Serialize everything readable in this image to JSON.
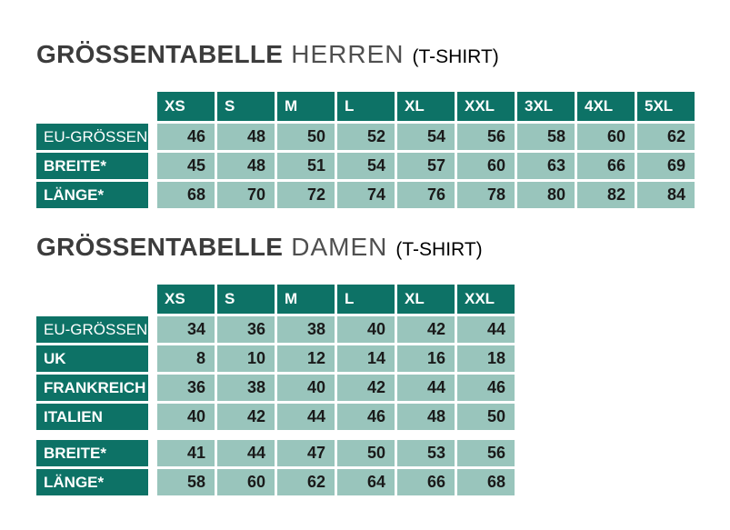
{
  "colors": {
    "header_bg": "#0d7266",
    "cell_bg": "#99c5bc",
    "header_text": "#ffffff",
    "cell_text": "#1a1a1a",
    "title_bold": "#3c3c3c",
    "title_light": "#4f4f4f",
    "title_suffix": "#000000"
  },
  "tables": [
    {
      "title_main": "GRÖSSENTABELLE",
      "title_sub": "HERREN",
      "title_suffix": "(T-SHIRT)",
      "columns": [
        "XS",
        "S",
        "M",
        "L",
        "XL",
        "XXL",
        "3XL",
        "4XL",
        "5XL"
      ],
      "rows": [
        {
          "label": "EU-GRÖSSEN",
          "bold": false,
          "section_gap": false,
          "values": [
            "46",
            "48",
            "50",
            "52",
            "54",
            "56",
            "58",
            "60",
            "62"
          ]
        },
        {
          "label": "BREITE*",
          "bold": true,
          "section_gap": false,
          "values": [
            "45",
            "48",
            "51",
            "54",
            "57",
            "60",
            "63",
            "66",
            "69"
          ]
        },
        {
          "label": "LÄNGE*",
          "bold": true,
          "section_gap": false,
          "values": [
            "68",
            "70",
            "72",
            "74",
            "76",
            "78",
            "80",
            "82",
            "84"
          ]
        }
      ]
    },
    {
      "title_main": "GRÖSSENTABELLE",
      "title_sub": "DAMEN",
      "title_suffix": "(T-SHIRT)",
      "columns": [
        "XS",
        "S",
        "M",
        "L",
        "XL",
        "XXL"
      ],
      "rows": [
        {
          "label": "EU-GRÖSSEN",
          "bold": false,
          "section_gap": false,
          "values": [
            "34",
            "36",
            "38",
            "40",
            "42",
            "44"
          ]
        },
        {
          "label": "UK",
          "bold": true,
          "section_gap": false,
          "values": [
            "8",
            "10",
            "12",
            "14",
            "16",
            "18"
          ]
        },
        {
          "label": "FRANKREICH",
          "bold": true,
          "section_gap": false,
          "values": [
            "36",
            "38",
            "40",
            "42",
            "44",
            "46"
          ]
        },
        {
          "label": "ITALIEN",
          "bold": true,
          "section_gap": false,
          "values": [
            "40",
            "42",
            "44",
            "46",
            "48",
            "50"
          ]
        },
        {
          "label": "BREITE*",
          "bold": true,
          "section_gap": true,
          "values": [
            "41",
            "44",
            "47",
            "50",
            "53",
            "56"
          ]
        },
        {
          "label": "LÄNGE*",
          "bold": true,
          "section_gap": false,
          "values": [
            "58",
            "60",
            "62",
            "64",
            "66",
            "68"
          ]
        }
      ]
    }
  ]
}
